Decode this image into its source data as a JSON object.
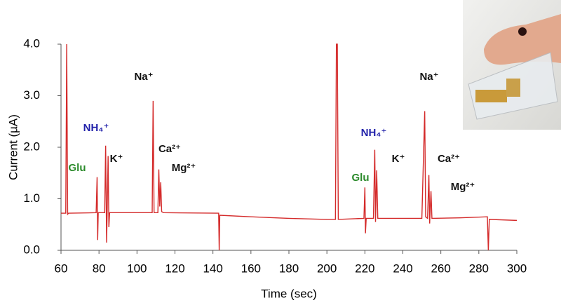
{
  "chart_data": {
    "type": "line",
    "xlabel": "Time (sec)",
    "ylabel": "Current (µA)",
    "x": [
      60,
      62.5,
      63,
      63.5,
      64,
      78.5,
      79,
      79.3,
      79.6,
      83,
      83.5,
      84,
      84.3,
      84.8,
      85.2,
      85.6,
      108,
      108.5,
      109,
      111,
      111.5,
      112,
      112.5,
      113,
      114,
      143,
      143.3,
      143.6,
      160,
      180,
      200,
      204.5,
      205,
      205.5,
      206,
      219.5,
      220,
      220.3,
      220.7,
      224.5,
      225.2,
      225.6,
      226.2,
      226.8,
      250,
      251.5,
      252,
      253,
      253.7,
      254.1,
      254.8,
      255.3,
      270,
      284.5,
      285,
      285.5,
      300
    ],
    "values": [
      0.72,
      0.72,
      4.0,
      0.7,
      0.72,
      0.73,
      1.42,
      0.2,
      0.73,
      0.73,
      2.03,
      0.15,
      0.73,
      1.83,
      0.45,
      0.73,
      0.73,
      2.9,
      0.73,
      0.73,
      1.57,
      0.85,
      1.32,
      0.75,
      0.73,
      0.72,
      0.0,
      0.68,
      0.65,
      0.62,
      0.6,
      0.6,
      4.0,
      4.0,
      0.6,
      0.62,
      1.22,
      0.33,
      0.62,
      0.62,
      1.95,
      0.55,
      1.55,
      0.62,
      0.62,
      2.7,
      0.65,
      0.62,
      1.46,
      0.52,
      1.15,
      0.62,
      0.63,
      0.65,
      0.0,
      0.6,
      0.58
    ],
    "color": "#d42a2a",
    "xlim": [
      60,
      300
    ],
    "xticks": [
      60,
      80,
      100,
      120,
      140,
      160,
      180,
      200,
      220,
      240,
      260,
      280,
      300
    ],
    "ylim": [
      0,
      4.0
    ],
    "yticks": [
      {
        "value": 0,
        "label": "0.0"
      },
      {
        "value": 1,
        "label": "1.0"
      },
      {
        "value": 2,
        "label": "2.0"
      },
      {
        "value": 3,
        "label": "3.0"
      },
      {
        "value": 4,
        "label": "4.0"
      }
    ],
    "annotations": [
      {
        "text": "Na⁺",
        "color": "#111111"
      },
      {
        "text": "NH₄⁺",
        "color": "#2222aa"
      },
      {
        "text": "Glu",
        "color": "#2a8a2a"
      },
      {
        "text": "K⁺",
        "color": "#111111"
      },
      {
        "text": "Ca²⁺",
        "color": "#111111"
      },
      {
        "text": "Mg²⁺",
        "color": "#111111"
      },
      {
        "text": "NH₄⁺",
        "color": "#2222aa"
      },
      {
        "text": "Glu",
        "color": "#2a8a2a"
      },
      {
        "text": "K⁺",
        "color": "#111111"
      },
      {
        "text": "Na⁺",
        "color": "#111111"
      },
      {
        "text": "Ca²⁺",
        "color": "#111111"
      },
      {
        "text": "Mg²⁺",
        "color": "#111111"
      }
    ]
  }
}
